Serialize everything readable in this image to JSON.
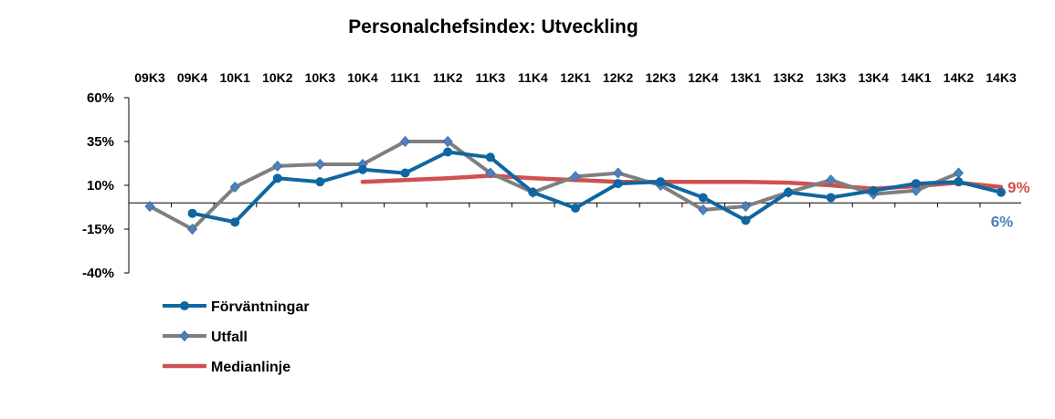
{
  "chart_data": {
    "type": "line",
    "title": "Personalchefsindex: Utveckling",
    "categories": [
      "09K3",
      "09K4",
      "10K1",
      "10K2",
      "10K3",
      "10K4",
      "11K1",
      "11K2",
      "11K3",
      "11K4",
      "12K1",
      "12K2",
      "12K3",
      "12K4",
      "13K1",
      "13K2",
      "13K3",
      "13K4",
      "14K1",
      "14K2",
      "14K3"
    ],
    "y_ticks": [
      "60%",
      "35%",
      "10%",
      "-15%",
      "-40%"
    ],
    "ylim": [
      -40,
      60
    ],
    "xlabel": "",
    "ylabel": "",
    "grid": false,
    "legend_position": "bottom-left",
    "series": [
      {
        "name": "Förväntningar",
        "color": "#1066a0",
        "marker": "circle",
        "values": [
          null,
          -6,
          -11,
          14,
          12,
          19,
          17,
          29,
          26,
          6,
          -3,
          11,
          12,
          3,
          -10,
          6,
          3,
          7,
          11,
          12,
          6
        ]
      },
      {
        "name": "Utfall",
        "color": "#7f7f7f",
        "marker": "diamond",
        "values": [
          -2,
          -15,
          9,
          21,
          22,
          22,
          35,
          35,
          17,
          6,
          15,
          17,
          10,
          -4,
          -2,
          6,
          13,
          5,
          7,
          17,
          null
        ]
      },
      {
        "name": "Medianlinje",
        "color": "#d05050",
        "marker": "none",
        "values": [
          null,
          null,
          null,
          null,
          null,
          12,
          13,
          14,
          15.5,
          14,
          13,
          12,
          12,
          12,
          12,
          11.5,
          10,
          8,
          9.5,
          11.5,
          9
        ]
      }
    ],
    "end_labels": [
      {
        "text": "9%",
        "series": "Medianlinje",
        "color": "#d05050"
      },
      {
        "text": "6%",
        "series": "Förväntningar",
        "color": "#4f81bd"
      }
    ]
  }
}
